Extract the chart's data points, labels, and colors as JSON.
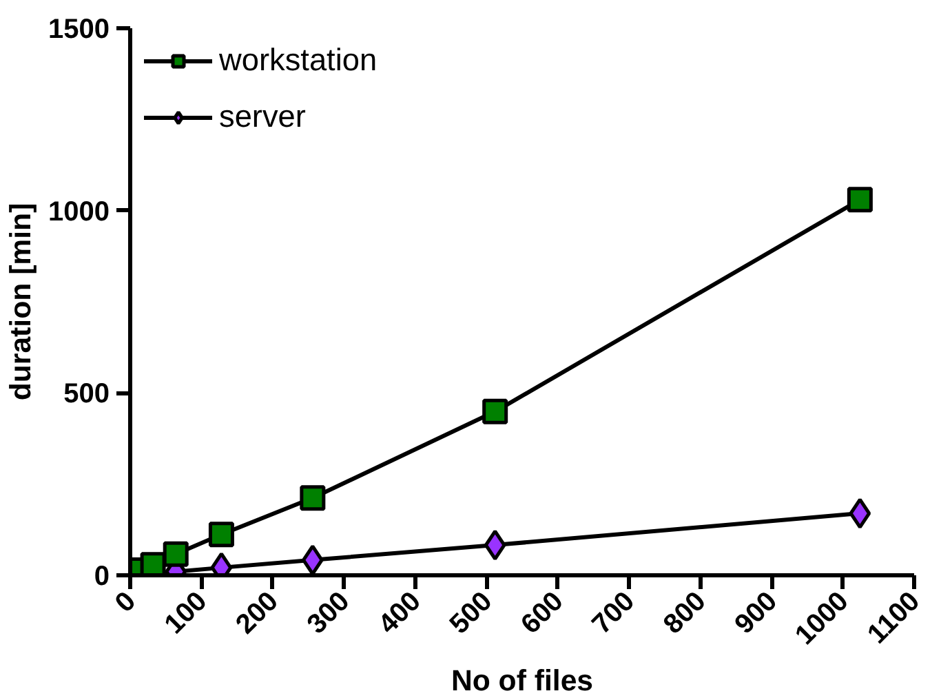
{
  "chart_data": {
    "type": "line",
    "xlabel": "No of files",
    "ylabel": "duration [min]",
    "x": [
      16,
      32,
      64,
      128,
      256,
      512,
      1024
    ],
    "series": [
      {
        "name": "workstation",
        "color": "#008000",
        "marker": "square",
        "values": [
          14,
          29,
          58,
          112,
          212,
          449,
          1030
        ]
      },
      {
        "name": "server",
        "color": "#9933ff",
        "marker": "diamond",
        "values": [
          3,
          5,
          10,
          21,
          42,
          83,
          170
        ]
      }
    ],
    "xlim": [
      0,
      1100
    ],
    "xticks": [
      0,
      100,
      200,
      300,
      400,
      500,
      600,
      700,
      800,
      900,
      1000,
      1100
    ],
    "ylim": [
      0,
      1500
    ],
    "yticks": [
      0,
      500,
      1000,
      1500
    ],
    "grid": false,
    "legend": "top left",
    "line_style": "solid"
  }
}
